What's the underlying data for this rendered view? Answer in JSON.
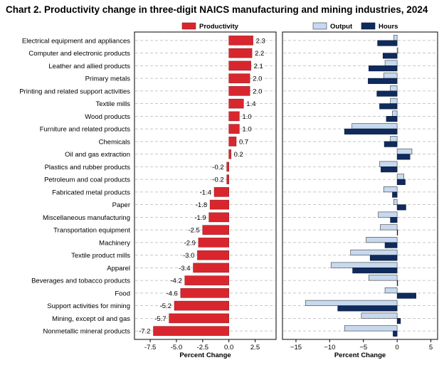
{
  "chart_title": "Chart 2. Productivity change in three-digit NAICS manufacturing and mining industries, 2024",
  "colors": {
    "productivity": "#d9262e",
    "output": "#c6d9ef",
    "hours": "#0f2a5c",
    "gridline": "#b5b5b5",
    "axis": "#000000"
  },
  "chart_data": [
    {
      "type": "bar",
      "orientation": "horizontal",
      "title": "",
      "xlabel": "Percent Change",
      "ylabel": "",
      "xlim": [
        -9,
        4.5
      ],
      "xticks": [
        -7.5,
        -5.0,
        -2.5,
        0.0,
        2.5
      ],
      "xtick_labels": [
        "-7.5",
        "-5.0",
        "-2.5",
        "0.0",
        "2.5"
      ],
      "legend_position": "top",
      "grid": "horizontal dashed",
      "categories": [
        "Electrical equipment and appliances",
        "Computer and electronic products",
        "Leather and allied products",
        "Primary metals",
        "Printing and related support activities",
        "Textile mills",
        "Wood products",
        "Furniture and related products",
        "Chemicals",
        "Oil and gas extraction",
        "Plastics and rubber products",
        "Petroleum and coal products",
        "Fabricated metal products",
        "Paper",
        "Miscellaneous manufacturing",
        "Transportation equipment",
        "Machinery",
        "Textile product mills",
        "Apparel",
        "Beverages and tobacco products",
        "Food",
        "Support activities for mining",
        "Mining, except oil and gas",
        "Nonmetallic mineral products"
      ],
      "series": [
        {
          "name": "Productivity",
          "values": [
            2.3,
            2.2,
            2.1,
            2.0,
            2.0,
            1.4,
            1.0,
            1.0,
            0.7,
            0.2,
            -0.2,
            -0.2,
            -1.4,
            -1.8,
            -1.9,
            -2.5,
            -2.9,
            -3.0,
            -3.4,
            -4.2,
            -4.6,
            -5.2,
            -5.7,
            -7.2
          ],
          "labels": [
            "2.3",
            "2.2",
            "2.1",
            "2.0",
            "2.0",
            "1.4",
            "1.0",
            "1.0",
            "0.7",
            "0.2",
            "-0.2",
            "-0.2",
            "-1.4",
            "-1.8",
            "-1.9",
            "-2.5",
            "-2.9",
            "-3.0",
            "-3.4",
            "-4.2",
            "-4.6",
            "-5.2",
            "-5.7",
            "-7.2"
          ]
        }
      ]
    },
    {
      "type": "bar",
      "orientation": "horizontal",
      "title": "",
      "xlabel": "Percent Change",
      "ylabel": "",
      "xlim": [
        -17,
        6
      ],
      "xticks": [
        -15,
        -10,
        -5,
        0,
        5
      ],
      "xtick_labels": [
        "−15",
        "−10",
        "−5",
        "0",
        "5"
      ],
      "legend_position": "top",
      "grid": "horizontal dashed",
      "series": [
        {
          "name": "Output",
          "values": [
            -0.5,
            0.1,
            -1.8,
            -2.0,
            -1.0,
            -1.0,
            -0.7,
            -6.7,
            -1.0,
            2.2,
            -2.6,
            1.0,
            -2.0,
            -0.5,
            -2.8,
            -2.5,
            -4.6,
            -6.9,
            -9.8,
            -4.2,
            -1.8,
            -13.6,
            -5.3,
            -7.8
          ]
        },
        {
          "name": "Hours",
          "values": [
            -2.9,
            -2.1,
            -4.2,
            -4.3,
            -3.0,
            -2.6,
            -1.6,
            -7.8,
            -1.9,
            1.9,
            -2.4,
            1.2,
            -0.7,
            1.3,
            -1.0,
            0.0,
            -1.8,
            -4.0,
            -6.6,
            0.0,
            2.8,
            -8.8,
            0.5,
            -0.6
          ]
        }
      ]
    }
  ]
}
